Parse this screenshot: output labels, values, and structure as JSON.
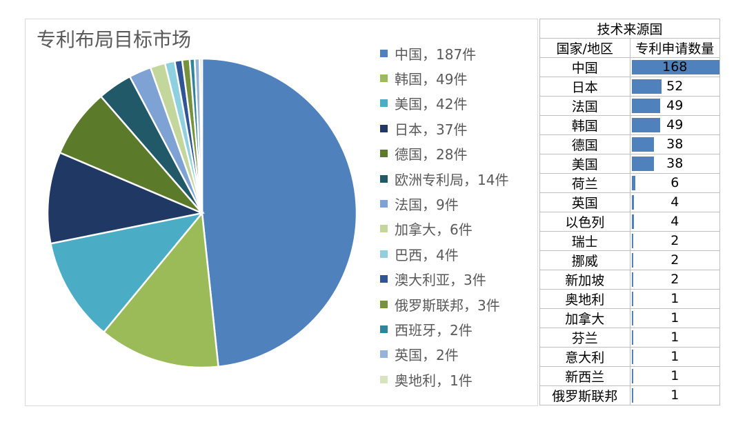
{
  "chart_data": [
    {
      "type": "pie",
      "title": "专利布局目标市场",
      "legend": "right",
      "categories": [
        "中国",
        "韩国",
        "美国",
        "日本",
        "德国",
        "欧洲专利局",
        "法国",
        "加拿大",
        "巴西",
        "澳大利亚",
        "俄罗斯联邦",
        "西班牙",
        "英国",
        "奥地利"
      ],
      "values": [
        187,
        49,
        42,
        37,
        28,
        14,
        9,
        6,
        4,
        3,
        3,
        2,
        2,
        1
      ],
      "legend_labels": [
        "中国，187件",
        "韩国，49件",
        "美国，42件",
        "日本，37件",
        "德国，28件",
        "欧洲专利局，14件",
        "法国，9件",
        "加拿大，6件",
        "巴西，4件",
        "澳大利亚，3件",
        "俄罗斯联邦，3件",
        "西班牙，2件",
        "英国，2件",
        "奥地利，1件"
      ],
      "colors": [
        "#4f81bd",
        "#9bbb59",
        "#4bacc6",
        "#1f3864",
        "#5b7a2a",
        "#215968",
        "#7ea2d3",
        "#c3d69b",
        "#8fd0e0",
        "#2f5597",
        "#76923c",
        "#31849b",
        "#95b3d7",
        "#d7e4bd"
      ]
    },
    {
      "type": "table",
      "title": "技术来源国",
      "columns": [
        "国家/地区",
        "专利申请数量"
      ],
      "categories": [
        "中国",
        "日本",
        "法国",
        "韩国",
        "德国",
        "美国",
        "荷兰",
        "英国",
        "以色列",
        "瑞士",
        "挪威",
        "新加坡",
        "奥地利",
        "加拿大",
        "芬兰",
        "意大利",
        "新西兰",
        "俄罗斯联邦"
      ],
      "values": [
        168,
        52,
        49,
        49,
        38,
        38,
        6,
        4,
        4,
        2,
        2,
        2,
        1,
        1,
        1,
        1,
        1,
        1
      ],
      "bar_color": "#4f81bd",
      "bar_max": 168
    }
  ]
}
